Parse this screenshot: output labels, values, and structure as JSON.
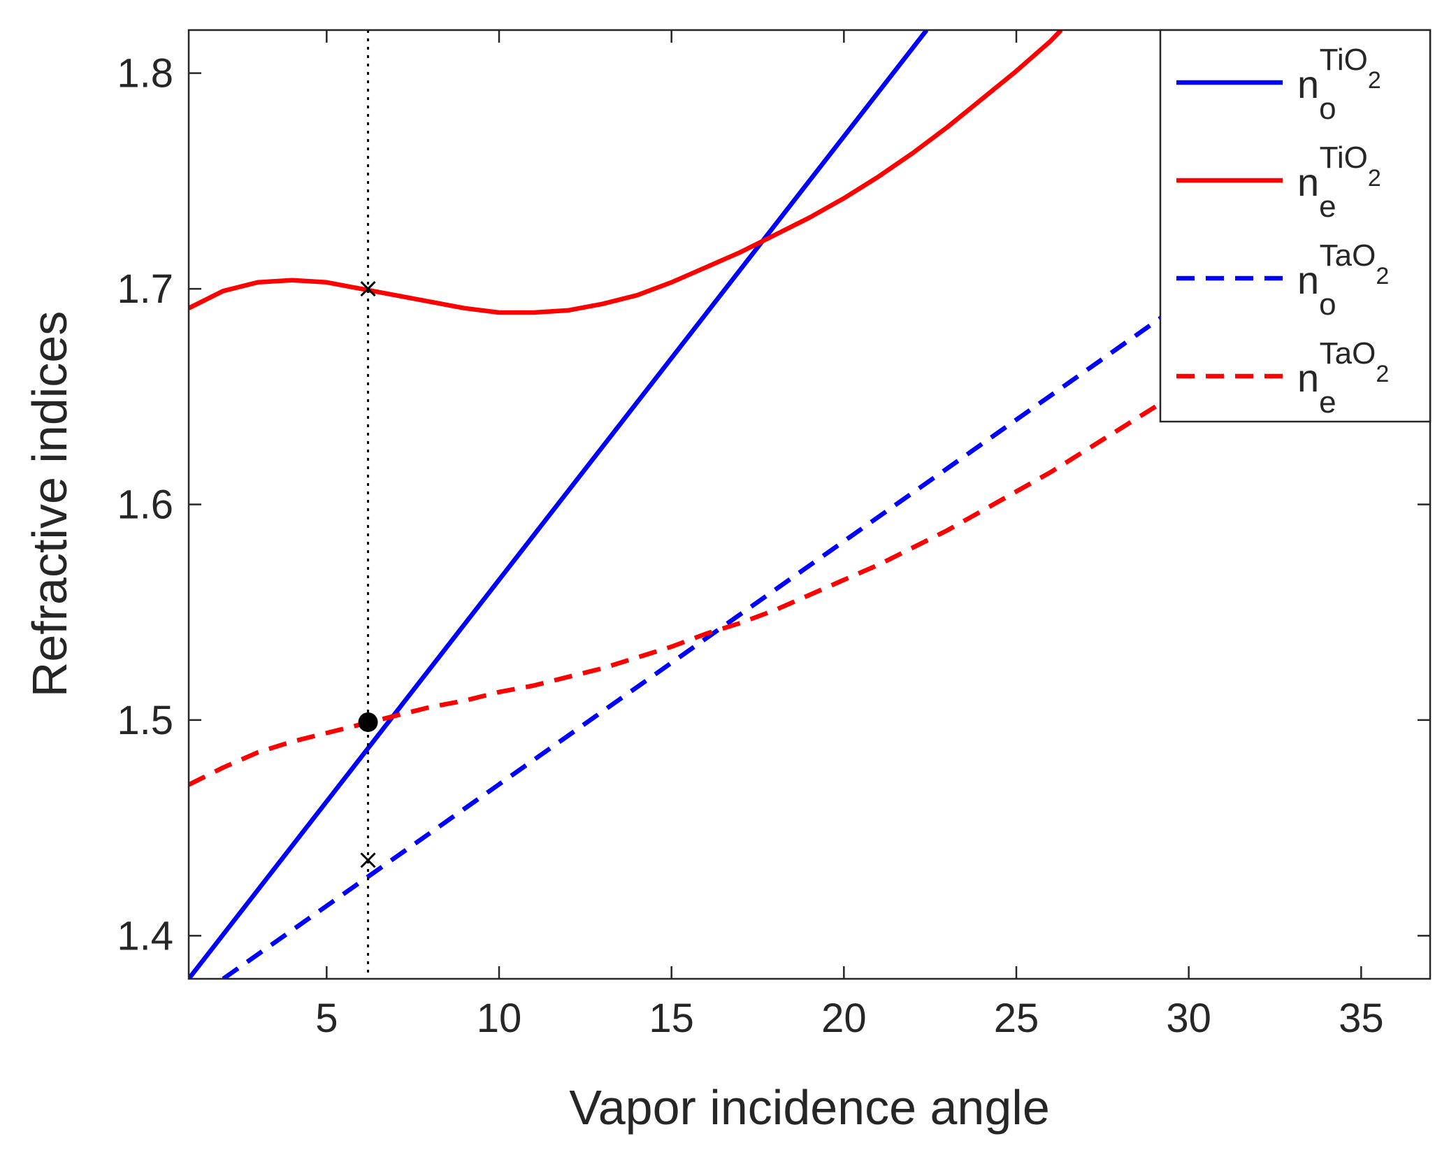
{
  "chart_data": {
    "type": "line",
    "title": "",
    "xlabel": "Vapor incidence angle",
    "ylabel": "Refractive indices",
    "xlim": [
      1,
      37
    ],
    "ylim": [
      1.38,
      1.82
    ],
    "xticks": [
      5,
      10,
      15,
      20,
      25,
      30,
      35
    ],
    "yticks": [
      1.4,
      1.5,
      1.6,
      1.7,
      1.8
    ],
    "xtick_labels": [
      "5",
      "10",
      "15",
      "20",
      "25",
      "30",
      "35"
    ],
    "ytick_labels": [
      "1.4",
      "1.5",
      "1.6",
      "1.7",
      "1.8"
    ],
    "grid": false,
    "legend_position": "top-right",
    "series": [
      {
        "name": "n_o^{TiO2}",
        "legend": {
          "base": "n",
          "sub": "o",
          "sup": "TiO",
          "sup_sub": "2"
        },
        "color": "#0000ff",
        "style": "solid",
        "x": [
          1,
          22.4
        ],
        "y": [
          1.38,
          1.82
        ]
      },
      {
        "name": "n_e^{TiO2}",
        "legend": {
          "base": "n",
          "sub": "e",
          "sup": "TiO",
          "sup_sub": "2"
        },
        "color": "#ff0000",
        "style": "solid",
        "x": [
          1,
          2,
          3,
          4,
          5,
          6,
          7,
          8,
          9,
          10,
          11,
          12,
          13,
          14,
          15,
          16,
          17,
          18,
          19,
          20,
          21,
          22,
          23,
          24,
          25,
          26,
          26.3
        ],
        "y": [
          1.691,
          1.699,
          1.703,
          1.704,
          1.703,
          1.7,
          1.697,
          1.694,
          1.691,
          1.689,
          1.689,
          1.69,
          1.693,
          1.697,
          1.703,
          1.71,
          1.717,
          1.725,
          1.733,
          1.742,
          1.752,
          1.763,
          1.775,
          1.788,
          1.801,
          1.815,
          1.82
        ]
      },
      {
        "name": "n_o^{TaO2}",
        "legend": {
          "base": "n",
          "sub": "o",
          "sup": "TaO",
          "sup_sub": "2"
        },
        "color": "#0000ff",
        "style": "dashed",
        "x": [
          2,
          29.5
        ],
        "y": [
          1.38,
          1.69
        ]
      },
      {
        "name": "n_e^{TaO2}",
        "legend": {
          "base": "n",
          "sub": "e",
          "sup": "TaO",
          "sup_sub": "2"
        },
        "color": "#ff0000",
        "style": "dashed",
        "x": [
          1,
          2,
          3,
          4,
          5,
          6,
          7,
          8,
          9,
          10,
          11,
          12,
          13,
          14,
          15,
          16,
          17,
          18,
          19,
          20,
          21,
          22,
          23,
          24,
          25,
          26,
          27,
          28,
          29,
          29.5
        ],
        "y": [
          1.47,
          1.478,
          1.485,
          1.49,
          1.494,
          1.498,
          1.502,
          1.506,
          1.509,
          1.513,
          1.516,
          1.52,
          1.524,
          1.529,
          1.534,
          1.54,
          1.545,
          1.551,
          1.558,
          1.565,
          1.572,
          1.58,
          1.588,
          1.597,
          1.606,
          1.615,
          1.625,
          1.635,
          1.645,
          1.65
        ]
      }
    ],
    "annotations": {
      "vertical_line": {
        "x": 6.2,
        "style": "dotted",
        "color": "#000000"
      },
      "points": [
        {
          "x": 6.2,
          "y": 1.7,
          "marker": "x"
        },
        {
          "x": 6.2,
          "y": 1.435,
          "marker": "x"
        },
        {
          "x": 6.2,
          "y": 1.499,
          "marker": "filled-circle"
        }
      ]
    }
  }
}
